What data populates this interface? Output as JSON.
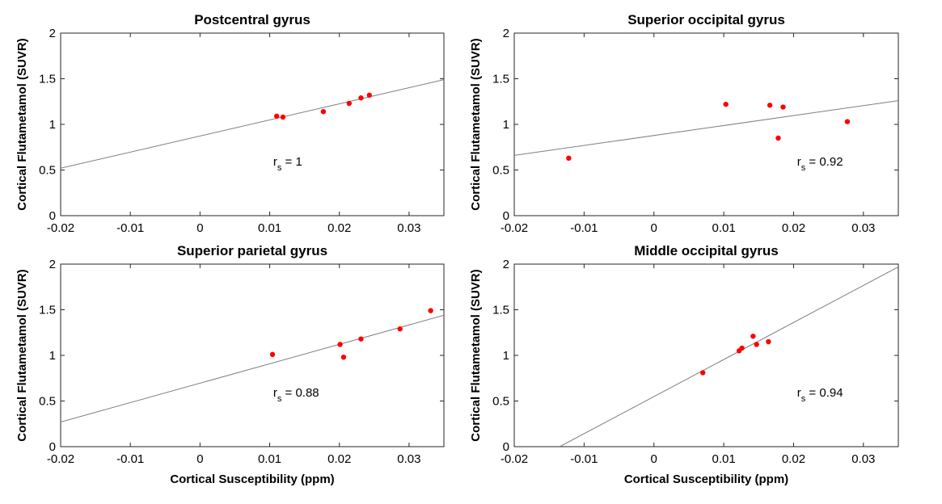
{
  "chart_data": [
    {
      "type": "scatter",
      "title": "Postcentral gyrus",
      "xlabel": "",
      "ylabel": "Cortical Flutametamol (SUVR)",
      "xlim": [
        -0.02,
        0.035
      ],
      "ylim": [
        0,
        2
      ],
      "xticks": [
        "-0.02",
        "-0.01",
        "0",
        "0.01",
        "0.02",
        "0.03"
      ],
      "yticks": [
        "0",
        "0.5",
        "1",
        "1.5",
        "2"
      ],
      "points": [
        [
          0.011,
          1.09
        ],
        [
          0.0119,
          1.08
        ],
        [
          0.0177,
          1.14
        ],
        [
          0.0214,
          1.23
        ],
        [
          0.0231,
          1.29
        ],
        [
          0.0243,
          1.32
        ]
      ],
      "fit_line": [
        [
          -0.02,
          0.52
        ],
        [
          0.035,
          1.49
        ]
      ],
      "annotation": {
        "main": "r",
        "sub": "s",
        "value": " = 1"
      }
    },
    {
      "type": "scatter",
      "title": "Superior occipital gyrus",
      "xlabel": "",
      "ylabel": "Cortical Flutametamol (SUVR)",
      "xlim": [
        -0.02,
        0.035
      ],
      "ylim": [
        0,
        2
      ],
      "xticks": [
        "-0.02",
        "-0.01",
        "0",
        "0.01",
        "0.02",
        "0.03"
      ],
      "yticks": [
        "0",
        "0.5",
        "1",
        "1.5",
        "2"
      ],
      "points": [
        [
          -0.0122,
          0.63
        ],
        [
          0.0103,
          1.22
        ],
        [
          0.0166,
          1.21
        ],
        [
          0.0178,
          0.85
        ],
        [
          0.0185,
          1.19
        ],
        [
          0.0277,
          1.03
        ]
      ],
      "fit_line": [
        [
          -0.02,
          0.66
        ],
        [
          0.035,
          1.26
        ]
      ],
      "annotation": {
        "main": "r",
        "sub": "s",
        "value": " = 0.92"
      }
    },
    {
      "type": "scatter",
      "title": "Superior parietal gyrus",
      "xlabel": "Cortical Susceptibility (ppm)",
      "ylabel": "Cortical Flutametamol (SUVR)",
      "xlim": [
        -0.02,
        0.035
      ],
      "ylim": [
        0,
        2
      ],
      "xticks": [
        "-0.02",
        "-0.01",
        "0",
        "0.01",
        "0.02",
        "0.03"
      ],
      "yticks": [
        "0",
        "0.5",
        "1",
        "1.5",
        "2"
      ],
      "points": [
        [
          0.0104,
          1.01
        ],
        [
          0.0201,
          1.12
        ],
        [
          0.0206,
          0.98
        ],
        [
          0.0231,
          1.18
        ],
        [
          0.0287,
          1.29
        ],
        [
          0.0331,
          1.49
        ]
      ],
      "fit_line": [
        [
          -0.02,
          0.27
        ],
        [
          0.035,
          1.44
        ]
      ],
      "annotation": {
        "main": "r",
        "sub": "s",
        "value": " = 0.88"
      }
    },
    {
      "type": "scatter",
      "title": "Middle occipital gyrus",
      "xlabel": "Cortical Susceptibility (ppm)",
      "ylabel": "Cortical Flutametamol (SUVR)",
      "xlim": [
        -0.02,
        0.035
      ],
      "ylim": [
        0,
        2
      ],
      "xticks": [
        "-0.02",
        "-0.01",
        "0",
        "0.01",
        "0.02",
        "0.03"
      ],
      "yticks": [
        "0",
        "0.5",
        "1",
        "1.5",
        "2"
      ],
      "points": [
        [
          0.007,
          0.81
        ],
        [
          0.0122,
          1.05
        ],
        [
          0.0126,
          1.08
        ],
        [
          0.0142,
          1.21
        ],
        [
          0.0147,
          1.12
        ],
        [
          0.0164,
          1.15
        ]
      ],
      "fit_line": [
        [
          -0.0135,
          0.0
        ],
        [
          0.035,
          1.97
        ]
      ],
      "annotation": {
        "main": "r",
        "sub": "s",
        "value": " = 0.94"
      }
    }
  ],
  "colors": {
    "marker": "#ff0000",
    "fit_line": "#7f7f7f",
    "axes": "#262626",
    "background": "#ffffff"
  }
}
